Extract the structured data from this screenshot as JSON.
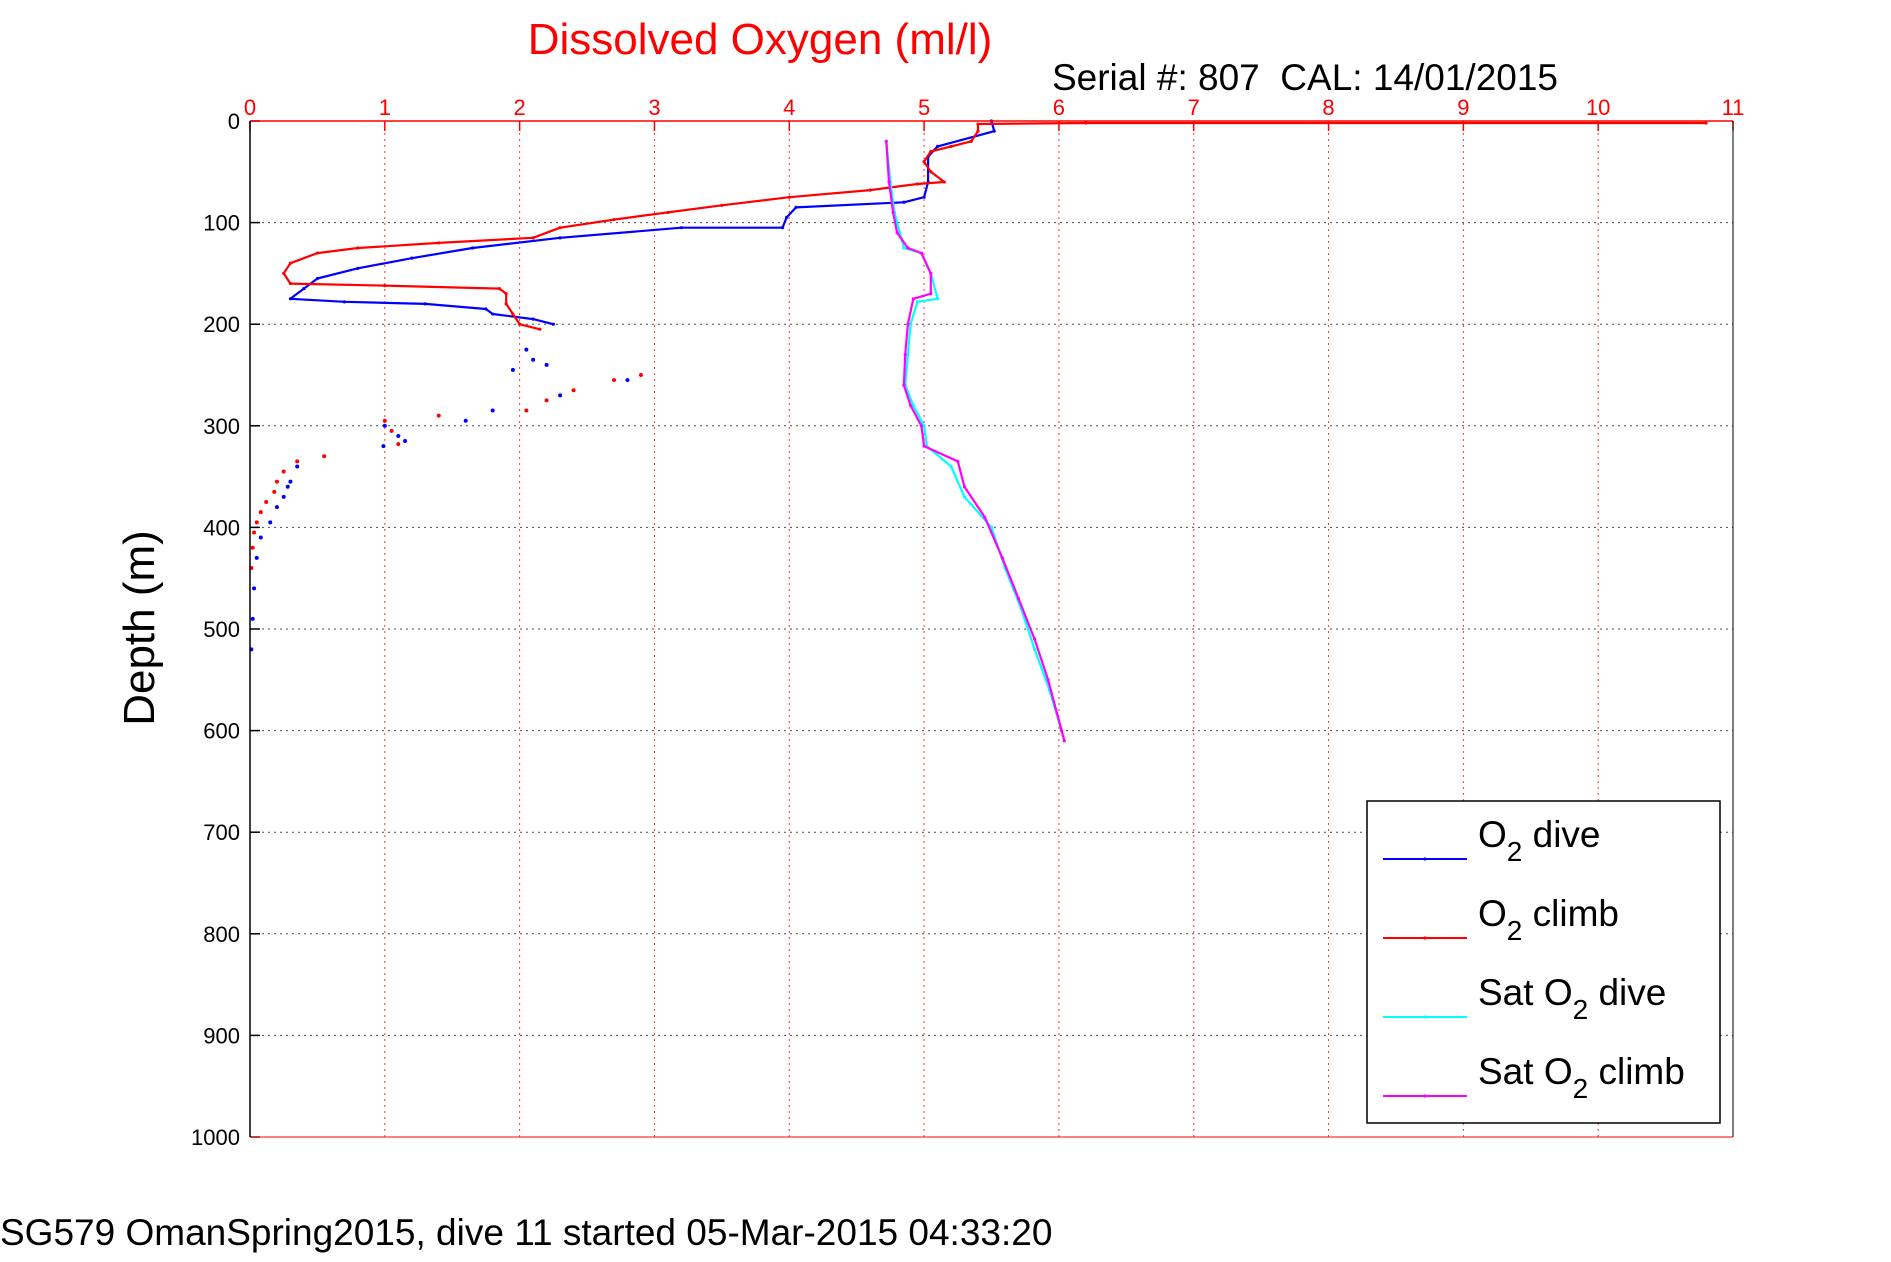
{
  "chart_data": {
    "type": "line",
    "title": "Dissolved Oxygen (ml/l)",
    "subtitle": "Serial #: 807  CAL: 14/01/2015",
    "xlabel": "",
    "ylabel": "Depth (m)",
    "xlim": [
      0,
      11
    ],
    "ylim": [
      0,
      1000
    ],
    "y_reversed": true,
    "x_axis_position": "top",
    "grid": true,
    "legend_position": "bottom-right",
    "x_ticks": [
      "0",
      "1",
      "2",
      "3",
      "4",
      "5",
      "6",
      "7",
      "8",
      "9",
      "10",
      "11"
    ],
    "y_ticks": [
      "0",
      "100",
      "200",
      "300",
      "400",
      "500",
      "600",
      "700",
      "800",
      "900",
      "1000"
    ],
    "series": [
      {
        "name": "O2 dive",
        "legend": {
          "base": "O",
          "sub": "2",
          "rest": " dive"
        },
        "color": "#0000ff",
        "points": [
          [
            5.5,
            0
          ],
          [
            5.52,
            10
          ],
          [
            5.1,
            25
          ],
          [
            5.03,
            35
          ],
          [
            5.03,
            60
          ],
          [
            5.0,
            75
          ],
          [
            4.85,
            80
          ],
          [
            4.05,
            85
          ],
          [
            3.98,
            95
          ],
          [
            3.95,
            105
          ],
          [
            3.2,
            105
          ],
          [
            2.3,
            115
          ],
          [
            1.65,
            125
          ],
          [
            1.2,
            135
          ],
          [
            0.8,
            145
          ],
          [
            0.5,
            155
          ],
          [
            0.4,
            165
          ],
          [
            0.3,
            175
          ],
          [
            0.7,
            178
          ],
          [
            1.3,
            180
          ],
          [
            1.75,
            185
          ],
          [
            1.8,
            190
          ],
          [
            2.1,
            195
          ],
          [
            2.25,
            200
          ]
        ]
      },
      {
        "name": "O2 climb",
        "legend": {
          "base": "O",
          "sub": "2",
          "rest": " climb"
        },
        "color": "#ff0000",
        "points": [
          [
            10.8,
            2
          ],
          [
            6.2,
            2
          ],
          [
            5.4,
            3
          ],
          [
            5.4,
            10
          ],
          [
            5.35,
            20
          ],
          [
            5.2,
            25
          ],
          [
            5.05,
            30
          ],
          [
            5.0,
            40
          ],
          [
            5.05,
            50
          ],
          [
            5.15,
            60
          ],
          [
            4.95,
            62
          ],
          [
            4.6,
            68
          ],
          [
            4.0,
            75
          ],
          [
            3.5,
            83
          ],
          [
            3.1,
            90
          ],
          [
            2.7,
            97
          ],
          [
            2.3,
            105
          ],
          [
            2.1,
            115
          ],
          [
            1.4,
            120
          ],
          [
            0.8,
            125
          ],
          [
            0.5,
            130
          ],
          [
            0.3,
            140
          ],
          [
            0.25,
            150
          ],
          [
            0.3,
            160
          ],
          [
            1.0,
            162
          ],
          [
            1.85,
            165
          ],
          [
            1.9,
            170
          ],
          [
            1.9,
            180
          ],
          [
            1.95,
            190
          ],
          [
            2.0,
            200
          ],
          [
            2.15,
            205
          ]
        ]
      },
      {
        "name": "Sat O2 dive",
        "legend": {
          "base": "Sat O",
          "sub": "2",
          "rest": " dive"
        },
        "color": "#00ffff",
        "points": [
          [
            4.72,
            20
          ],
          [
            4.75,
            60
          ],
          [
            4.78,
            90
          ],
          [
            4.82,
            110
          ],
          [
            4.85,
            125
          ],
          [
            4.98,
            130
          ],
          [
            5.05,
            150
          ],
          [
            5.1,
            175
          ],
          [
            4.95,
            178
          ],
          [
            4.9,
            200
          ],
          [
            4.88,
            230
          ],
          [
            4.86,
            260
          ],
          [
            4.92,
            280
          ],
          [
            5.0,
            300
          ],
          [
            5.02,
            320
          ],
          [
            5.2,
            340
          ],
          [
            5.3,
            370
          ],
          [
            5.5,
            400
          ],
          [
            5.6,
            440
          ],
          [
            5.72,
            480
          ],
          [
            5.82,
            520
          ],
          [
            5.93,
            560
          ],
          [
            6.02,
            600
          ]
        ]
      },
      {
        "name": "Sat O2 climb",
        "legend": {
          "base": "Sat O",
          "sub": "2",
          "rest": " climb"
        },
        "color": "#ff00ff",
        "points": [
          [
            4.72,
            20
          ],
          [
            4.74,
            60
          ],
          [
            4.77,
            90
          ],
          [
            4.8,
            110
          ],
          [
            4.88,
            125
          ],
          [
            4.98,
            130
          ],
          [
            5.05,
            150
          ],
          [
            5.05,
            170
          ],
          [
            4.92,
            175
          ],
          [
            4.88,
            200
          ],
          [
            4.86,
            230
          ],
          [
            4.85,
            260
          ],
          [
            4.9,
            280
          ],
          [
            4.98,
            300
          ],
          [
            5.0,
            320
          ],
          [
            5.25,
            335
          ],
          [
            5.3,
            360
          ],
          [
            5.45,
            390
          ],
          [
            5.58,
            430
          ],
          [
            5.7,
            470
          ],
          [
            5.82,
            510
          ],
          [
            5.92,
            550
          ],
          [
            6.02,
            600
          ],
          [
            6.04,
            610
          ]
        ]
      }
    ],
    "scatter_dive": [
      [
        2.05,
        225
      ],
      [
        2.1,
        235
      ],
      [
        1.95,
        245
      ],
      [
        2.2,
        240
      ],
      [
        2.8,
        255
      ],
      [
        2.3,
        270
      ],
      [
        1.8,
        285
      ],
      [
        1.6,
        295
      ],
      [
        1.0,
        300
      ],
      [
        1.1,
        310
      ],
      [
        1.15,
        315
      ],
      [
        0.99,
        320
      ],
      [
        0.35,
        340
      ],
      [
        0.3,
        355
      ],
      [
        0.28,
        360
      ],
      [
        0.25,
        370
      ],
      [
        0.2,
        380
      ],
      [
        0.15,
        395
      ],
      [
        0.08,
        410
      ],
      [
        0.05,
        430
      ],
      [
        0.03,
        460
      ],
      [
        0.02,
        490
      ],
      [
        0.01,
        520
      ]
    ],
    "scatter_climb": [
      [
        2.9,
        250
      ],
      [
        2.7,
        255
      ],
      [
        2.4,
        265
      ],
      [
        2.2,
        275
      ],
      [
        2.05,
        285
      ],
      [
        1.4,
        290
      ],
      [
        1.0,
        295
      ],
      [
        1.05,
        305
      ],
      [
        1.1,
        318
      ],
      [
        0.55,
        330
      ],
      [
        0.35,
        335
      ],
      [
        0.25,
        345
      ],
      [
        0.2,
        355
      ],
      [
        0.18,
        365
      ],
      [
        0.12,
        375
      ],
      [
        0.08,
        385
      ],
      [
        0.05,
        395
      ],
      [
        0.03,
        405
      ],
      [
        0.02,
        420
      ],
      [
        0.01,
        440
      ]
    ]
  },
  "caption": "SG579 OmanSpring2015, dive 11 started 05-Mar-2015 04:33:20"
}
